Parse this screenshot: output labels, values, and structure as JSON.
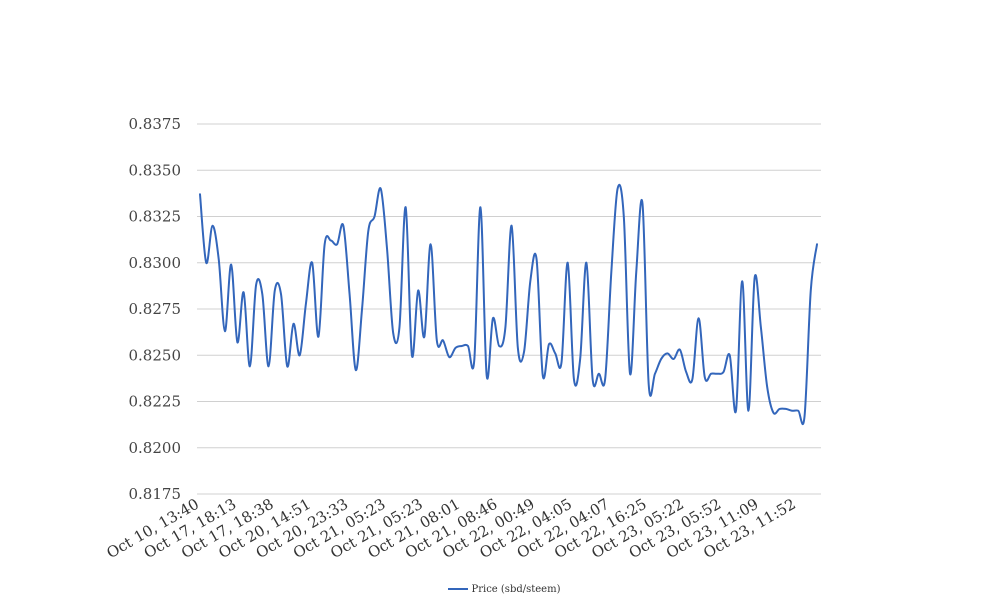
{
  "colors": {
    "series": "#3366bb",
    "grid": "#d0d0d0"
  },
  "chart_data": {
    "type": "line",
    "ylim": [
      0.8175,
      0.8375
    ],
    "yticks": [
      "0.8375",
      "0.8350",
      "0.8325",
      "0.8300",
      "0.8275",
      "0.8250",
      "0.8225",
      "0.8200",
      "0.8175"
    ],
    "xticks": [
      "Oct 10, 13:40",
      "Oct 17, 18:13",
      "Oct 17, 18:38",
      "Oct 20, 14:51",
      "Oct 20, 23:33",
      "Oct 21, 05:23",
      "Oct 21, 05:23",
      "Oct 21, 08:01",
      "Oct 21, 08:46",
      "Oct 22, 00:49",
      "Oct 22, 04:05",
      "Oct 22, 04:07",
      "Oct 22, 16:25",
      "Oct 23, 05:22",
      "Oct 23, 05:52",
      "Oct 23, 11:09",
      "Oct 23, 11:52"
    ],
    "grid": true,
    "legend_position": "bottom",
    "series": [
      {
        "name": "Price (sbd/steem)",
        "values": [
          0.8337,
          0.83,
          0.832,
          0.8302,
          0.8263,
          0.8299,
          0.8257,
          0.8284,
          0.8244,
          0.8288,
          0.8283,
          0.8244,
          0.8285,
          0.8283,
          0.8244,
          0.8267,
          0.825,
          0.8278,
          0.83,
          0.826,
          0.831,
          0.8312,
          0.831,
          0.832,
          0.8283,
          0.8242,
          0.8275,
          0.8317,
          0.8325,
          0.834,
          0.8308,
          0.8262,
          0.8265,
          0.833,
          0.825,
          0.8285,
          0.826,
          0.831,
          0.8258,
          0.8258,
          0.8249,
          0.8254,
          0.8255,
          0.8255,
          0.8247,
          0.833,
          0.8239,
          0.827,
          0.8255,
          0.8265,
          0.832,
          0.8254,
          0.8252,
          0.829,
          0.8302,
          0.8239,
          0.8256,
          0.8251,
          0.8246,
          0.83,
          0.8237,
          0.8248,
          0.83,
          0.8237,
          0.824,
          0.8237,
          0.8295,
          0.834,
          0.8325,
          0.824,
          0.8295,
          0.8332,
          0.8234,
          0.824,
          0.8248,
          0.8251,
          0.8248,
          0.8253,
          0.8241,
          0.8237,
          0.827,
          0.8238,
          0.824,
          0.824,
          0.8241,
          0.825,
          0.822,
          0.829,
          0.822,
          0.8292,
          0.8265,
          0.8233,
          0.8219,
          0.8221,
          0.8221,
          0.822,
          0.822,
          0.8217,
          0.8285,
          0.831
        ]
      }
    ]
  }
}
